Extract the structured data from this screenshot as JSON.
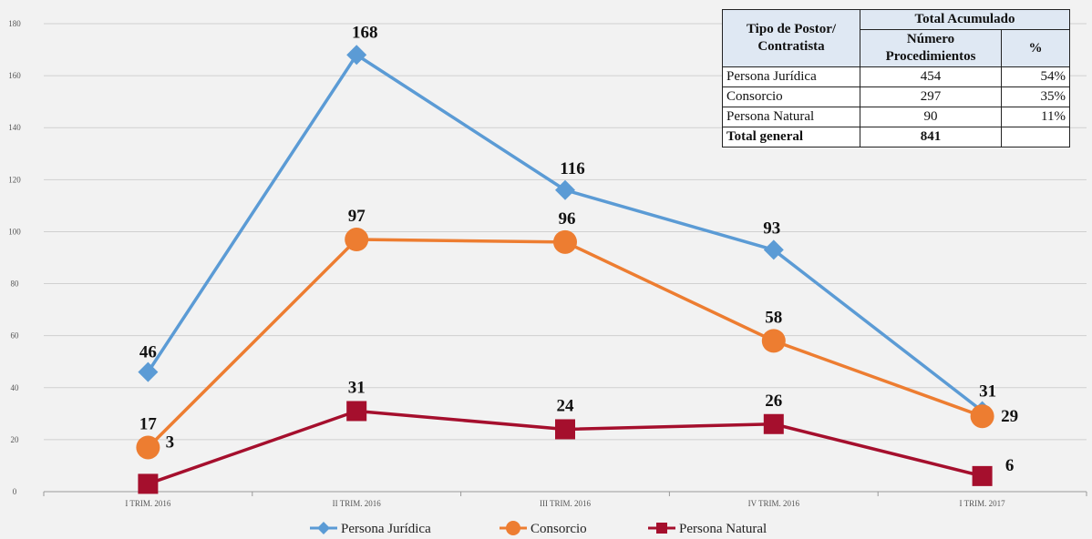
{
  "chart_data": {
    "type": "line",
    "categories": [
      "I TRIM. 2016",
      "II TRIM. 2016",
      "III TRIM. 2016",
      "IV TRIM. 2016",
      "I TRIM. 2017"
    ],
    "ylim": [
      0,
      180
    ],
    "yticks": [
      0,
      20,
      40,
      60,
      80,
      100,
      120,
      140,
      160,
      180
    ],
    "grid": true,
    "legend_position": "bottom",
    "series": [
      {
        "name": "Persona Jurídica",
        "values": [
          46,
          168,
          116,
          93,
          31
        ],
        "color": "#5b9bd5",
        "marker": "diamond"
      },
      {
        "name": "Consorcio",
        "values": [
          17,
          97,
          96,
          58,
          29
        ],
        "color": "#ed7d31",
        "marker": "circle"
      },
      {
        "name": "Persona Natural",
        "values": [
          3,
          31,
          24,
          26,
          6
        ],
        "color": "#a50f2d",
        "marker": "square"
      }
    ]
  },
  "table": {
    "header_col1": "Tipo de Postor/ Contratista",
    "header_group": "Total Acumulado",
    "header_col2": "Número Procedimientos",
    "header_col3": "%",
    "rows": [
      {
        "tipo": "Persona Jurídica",
        "numero": "454",
        "pct": "54%"
      },
      {
        "tipo": "Consorcio",
        "numero": "297",
        "pct": "35%"
      },
      {
        "tipo": "Persona Natural",
        "numero": "90",
        "pct": "11%"
      }
    ],
    "total": {
      "tipo": "Total general",
      "numero": "841",
      "pct": ""
    }
  }
}
